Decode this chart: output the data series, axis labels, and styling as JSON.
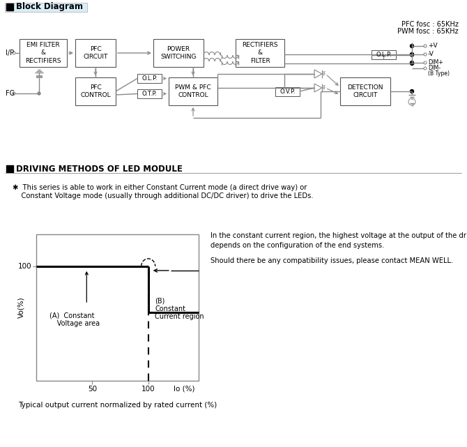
{
  "bg_color": "#ffffff",
  "title_section1": "Block Diagram",
  "title_section2": "DRIVING METHODS OF LED MODULE",
  "pfc_fosc": "PFC fosc : 65KHz",
  "pwm_fosc": "PWM fosc : 65KHz",
  "desc_text1": "✱  This series is able to work in either Constant Current mode (a direct drive way) or",
  "desc_text2": "    Constant Voltage mode (usually through additional DC/DC driver) to drive the LEDs.",
  "cc_text1": "In the constant current region, the highest voltage at the output of the driver",
  "cc_text2": "depends on the configuration of the end systems.",
  "cc_text3": "Should there be any compatibility issues, please contact MEAN WELL.",
  "caption": "Typical output current normalized by rated current (%)",
  "label_A": "(A)  Constant\n      Voltage area",
  "label_B": "(B)\nConstant\nCurrent region",
  "ylabel": "Vo(%)",
  "xlabel": "Io (%)",
  "line_color": "#888888",
  "box_edge_color": "#555555",
  "header_bg": "#d8eef8"
}
